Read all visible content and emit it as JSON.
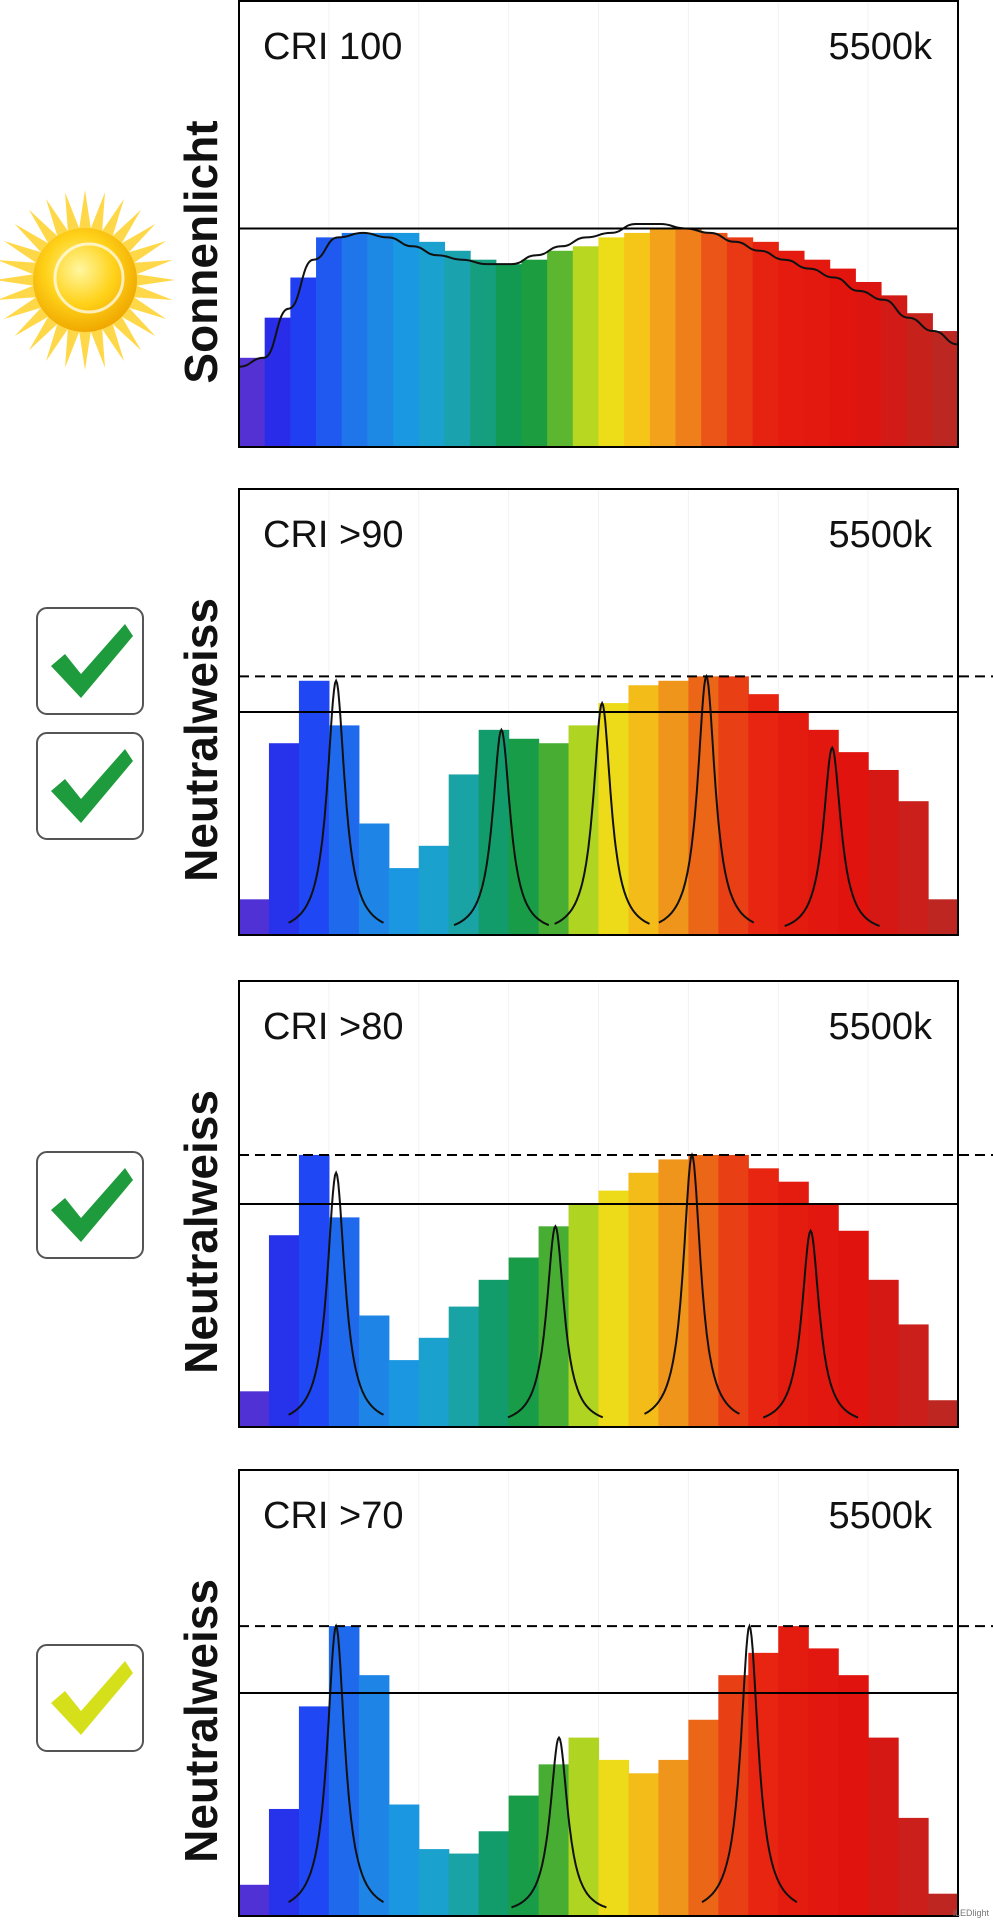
{
  "watermark": "iLEDlight",
  "chart_data": [
    {
      "type": "bar",
      "title": "CRI 100",
      "temperature": "5500k",
      "side_label": "Sonnenlicht",
      "icon": "sun-icon",
      "checkmarks": [],
      "reference_line": 0.49,
      "dashed_line": null,
      "ylim": [
        0,
        1
      ],
      "bars": [
        0.2,
        0.29,
        0.38,
        0.47,
        0.48,
        0.48,
        0.48,
        0.46,
        0.44,
        0.42,
        0.41,
        0.42,
        0.44,
        0.45,
        0.47,
        0.48,
        0.49,
        0.49,
        0.48,
        0.47,
        0.46,
        0.44,
        0.42,
        0.4,
        0.37,
        0.34,
        0.3,
        0.26
      ],
      "spectrum_curve": [
        0.18,
        0.2,
        0.31,
        0.42,
        0.47,
        0.48,
        0.47,
        0.45,
        0.43,
        0.42,
        0.41,
        0.41,
        0.43,
        0.45,
        0.47,
        0.48,
        0.5,
        0.5,
        0.49,
        0.48,
        0.46,
        0.44,
        0.42,
        0.4,
        0.38,
        0.35,
        0.33,
        0.29,
        0.26,
        0.23
      ]
    },
    {
      "type": "bar",
      "title": "CRI >90",
      "temperature": "5500k",
      "side_label": "Neutralweiss",
      "icon": "check-icon",
      "checkmarks": [
        "#1e9b3c",
        "#1e9b3c"
      ],
      "reference_line": 0.5,
      "dashed_line": 0.58,
      "ylim": [
        0,
        1
      ],
      "bars": [
        0.08,
        0.43,
        0.57,
        0.47,
        0.25,
        0.15,
        0.2,
        0.36,
        0.46,
        0.44,
        0.43,
        0.47,
        0.52,
        0.56,
        0.57,
        0.58,
        0.58,
        0.54,
        0.5,
        0.46,
        0.41,
        0.37,
        0.3,
        0.08
      ],
      "peaks": [
        {
          "center": 0.135,
          "height": 0.57,
          "width": 0.022
        },
        {
          "center": 0.365,
          "height": 0.46,
          "width": 0.022
        },
        {
          "center": 0.505,
          "height": 0.52,
          "width": 0.022
        },
        {
          "center": 0.65,
          "height": 0.58,
          "width": 0.022
        },
        {
          "center": 0.825,
          "height": 0.42,
          "width": 0.022
        }
      ]
    },
    {
      "type": "bar",
      "title": "CRI >80",
      "temperature": "5500k",
      "side_label": "Neutralweiss",
      "icon": "check-icon",
      "checkmarks": [
        "#1e9b3c"
      ],
      "reference_line": 0.5,
      "dashed_line": 0.61,
      "ylim": [
        0,
        1
      ],
      "bars": [
        0.08,
        0.43,
        0.61,
        0.47,
        0.25,
        0.15,
        0.2,
        0.27,
        0.33,
        0.38,
        0.45,
        0.5,
        0.53,
        0.57,
        0.6,
        0.61,
        0.61,
        0.58,
        0.55,
        0.5,
        0.44,
        0.33,
        0.23,
        0.06
      ],
      "peaks": [
        {
          "center": 0.135,
          "height": 0.57,
          "width": 0.022
        },
        {
          "center": 0.44,
          "height": 0.45,
          "width": 0.022
        },
        {
          "center": 0.63,
          "height": 0.61,
          "width": 0.022
        },
        {
          "center": 0.795,
          "height": 0.44,
          "width": 0.022
        }
      ]
    },
    {
      "type": "bar",
      "title": "CRI >70",
      "temperature": "5500k",
      "side_label": "Neutralweiss",
      "icon": "check-icon",
      "checkmarks": [
        "#d6e01a"
      ],
      "reference_line": 0.5,
      "dashed_line": 0.65,
      "ylim": [
        0,
        1
      ],
      "bars": [
        0.07,
        0.24,
        0.47,
        0.65,
        0.54,
        0.25,
        0.15,
        0.14,
        0.19,
        0.27,
        0.34,
        0.4,
        0.35,
        0.32,
        0.35,
        0.44,
        0.54,
        0.59,
        0.65,
        0.6,
        0.54,
        0.4,
        0.22,
        0.05
      ],
      "peaks": [
        {
          "center": 0.135,
          "height": 0.65,
          "width": 0.022
        },
        {
          "center": 0.445,
          "height": 0.4,
          "width": 0.022
        },
        {
          "center": 0.71,
          "height": 0.65,
          "width": 0.022
        }
      ]
    }
  ]
}
